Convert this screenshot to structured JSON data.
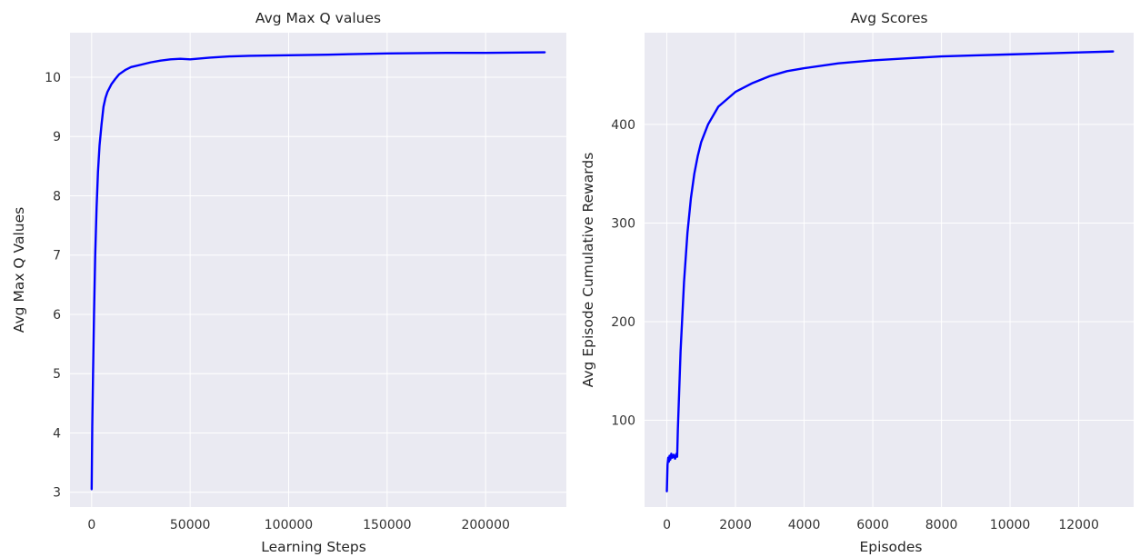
{
  "chart_data": [
    {
      "type": "line",
      "title": "Avg Max Q values",
      "xlabel": "Learning Steps",
      "ylabel": "Avg Max Q Values",
      "xlim": [
        -11000,
        241000
      ],
      "ylim": [
        2.75,
        10.75
      ],
      "xticks": [
        0,
        50000,
        100000,
        150000,
        200000
      ],
      "yticks": [
        3,
        4,
        5,
        6,
        7,
        8,
        9,
        10
      ],
      "grid": true,
      "series": [
        {
          "color": "#0000ff",
          "x": [
            0,
            300,
            700,
            1200,
            1800,
            2500,
            3200,
            4000,
            5000,
            6000,
            7000,
            8000,
            10000,
            12000,
            14000,
            17000,
            20000,
            25000,
            30000,
            35000,
            40000,
            45000,
            50000,
            60000,
            70000,
            80000,
            100000,
            120000,
            150000,
            180000,
            200000,
            230000
          ],
          "y": [
            3.05,
            4.1,
            5.0,
            6.0,
            7.0,
            7.8,
            8.4,
            8.85,
            9.2,
            9.5,
            9.65,
            9.75,
            9.88,
            9.97,
            10.05,
            10.12,
            10.17,
            10.21,
            10.25,
            10.28,
            10.3,
            10.31,
            10.3,
            10.33,
            10.35,
            10.36,
            10.37,
            10.38,
            10.4,
            10.41,
            10.41,
            10.42
          ]
        }
      ]
    },
    {
      "type": "line",
      "title": "Avg Scores",
      "xlabel": "Episodes",
      "ylabel": "Avg Episode Cumulative Rewards",
      "xlim": [
        -650,
        13600
      ],
      "ylim": [
        12,
        493
      ],
      "xticks": [
        0,
        2000,
        4000,
        6000,
        8000,
        10000,
        12000
      ],
      "yticks": [
        100,
        200,
        300,
        400
      ],
      "grid": true,
      "series": [
        {
          "color": "#0000ff",
          "x": [
            0,
            20,
            40,
            60,
            80,
            100,
            130,
            160,
            200,
            240,
            280,
            300,
            320,
            400,
            500,
            600,
            700,
            800,
            900,
            1000,
            1200,
            1500,
            2000,
            2500,
            3000,
            3500,
            4000,
            5000,
            6000,
            7000,
            8000,
            9000,
            10000,
            11000,
            12000,
            13000
          ],
          "y": [
            28,
            55,
            62,
            58,
            64,
            60,
            66,
            62,
            65,
            61,
            66,
            63,
            90,
            170,
            240,
            290,
            325,
            350,
            368,
            382,
            400,
            418,
            433,
            442,
            449,
            454,
            457,
            462,
            465,
            467,
            469,
            470,
            471,
            472,
            473,
            474
          ]
        }
      ]
    }
  ]
}
